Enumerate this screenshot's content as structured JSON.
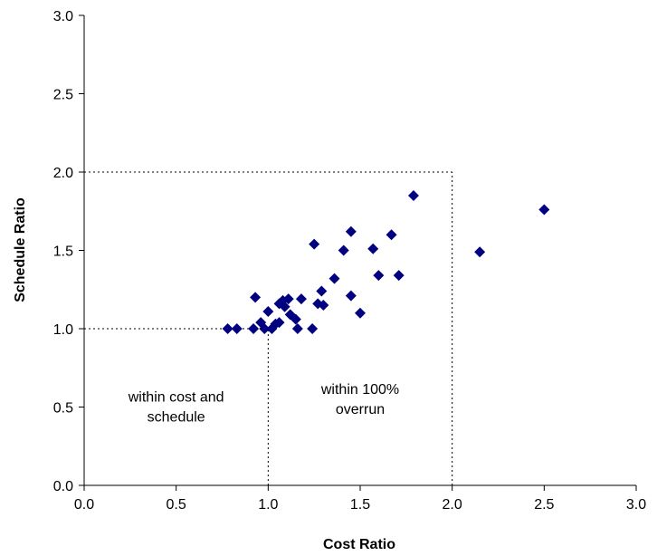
{
  "chart_data": {
    "type": "scatter",
    "title": "",
    "xlabel": "Cost Ratio",
    "ylabel": "Schedule Ratio",
    "xlim": [
      0.0,
      3.0
    ],
    "ylim": [
      0.0,
      3.0
    ],
    "x_ticks": [
      "0.0",
      "0.5",
      "1.0",
      "1.5",
      "2.0",
      "2.5",
      "3.0"
    ],
    "y_ticks": [
      "0.0",
      "0.5",
      "1.0",
      "1.5",
      "2.0",
      "2.5",
      "3.0"
    ],
    "grid": false,
    "legend": "none",
    "marker": "diamond",
    "marker_color": "#000080",
    "series": [
      {
        "points": [
          [
            0.78,
            1.0
          ],
          [
            0.83,
            1.0
          ],
          [
            0.92,
            1.0
          ],
          [
            0.93,
            1.2
          ],
          [
            0.96,
            1.04
          ],
          [
            0.98,
            1.0
          ],
          [
            1.0,
            1.11
          ],
          [
            1.02,
            1.0
          ],
          [
            1.04,
            1.03
          ],
          [
            1.06,
            1.04
          ],
          [
            1.06,
            1.16
          ],
          [
            1.08,
            1.18
          ],
          [
            1.09,
            1.14
          ],
          [
            1.11,
            1.19
          ],
          [
            1.12,
            1.09
          ],
          [
            1.15,
            1.06
          ],
          [
            1.16,
            1.0
          ],
          [
            1.18,
            1.19
          ],
          [
            1.24,
            1.0
          ],
          [
            1.25,
            1.54
          ],
          [
            1.27,
            1.16
          ],
          [
            1.29,
            1.24
          ],
          [
            1.3,
            1.15
          ],
          [
            1.36,
            1.32
          ],
          [
            1.41,
            1.5
          ],
          [
            1.45,
            1.62
          ],
          [
            1.45,
            1.21
          ],
          [
            1.5,
            1.1
          ],
          [
            1.57,
            1.51
          ],
          [
            1.6,
            1.34
          ],
          [
            1.67,
            1.6
          ],
          [
            1.71,
            1.34
          ],
          [
            1.79,
            1.85
          ],
          [
            2.15,
            1.49
          ],
          [
            2.5,
            1.76
          ]
        ]
      }
    ],
    "reference_lines": [
      {
        "name": "cost-ratio-1-line",
        "points": [
          [
            1.0,
            0.0
          ],
          [
            1.0,
            1.0
          ]
        ]
      },
      {
        "name": "schedule-ratio-1-line",
        "points": [
          [
            0.0,
            1.0
          ],
          [
            1.0,
            1.0
          ]
        ]
      },
      {
        "name": "cost-ratio-2-line",
        "points": [
          [
            2.0,
            0.0
          ],
          [
            2.0,
            2.0
          ]
        ]
      },
      {
        "name": "schedule-ratio-2-line",
        "points": [
          [
            0.0,
            2.0
          ],
          [
            2.0,
            2.0
          ]
        ]
      }
    ],
    "annotations": [
      {
        "name": "within-cost-schedule-label",
        "lines": [
          "within cost and",
          "schedule"
        ],
        "x": 0.5,
        "y": 0.5
      },
      {
        "name": "within-overrun-label",
        "lines": [
          "within 100%",
          "overrun"
        ],
        "x": 1.5,
        "y": 0.55
      }
    ]
  }
}
